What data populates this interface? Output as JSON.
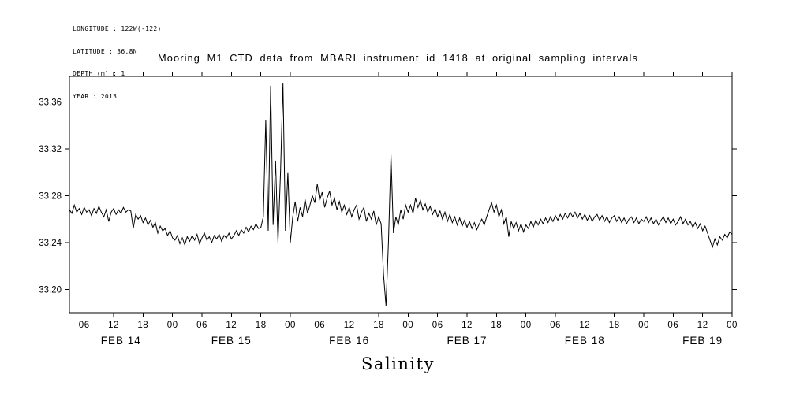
{
  "header_info": {
    "lines": [
      "LONGITUDE : 122W(-122)",
      "LATITUDE : 36.8N",
      "DEPTH (m) : 1",
      "YEAR : 2013"
    ]
  },
  "chart_data": {
    "type": "line",
    "title": "Mooring M1 CTD data from MBARI instrument id 1418 at original sampling intervals",
    "xlabel": "Salinity",
    "ylabel": "",
    "x_unit": "hours since 2013-02-14 00:00",
    "grid": false,
    "legend": "none",
    "line_color": "#000000",
    "background": "#ffffff",
    "xlim": [
      3,
      138
    ],
    "ylim": [
      33.18,
      33.382
    ],
    "y_ticks": [
      33.2,
      33.24,
      33.28,
      33.32,
      33.36
    ],
    "x_ticks": [
      {
        "h": 6,
        "label": "06"
      },
      {
        "h": 12,
        "label": "12"
      },
      {
        "h": 18,
        "label": "18"
      },
      {
        "h": 24,
        "label": "00"
      },
      {
        "h": 30,
        "label": "06"
      },
      {
        "h": 36,
        "label": "12"
      },
      {
        "h": 42,
        "label": "18"
      },
      {
        "h": 48,
        "label": "00"
      },
      {
        "h": 54,
        "label": "06"
      },
      {
        "h": 60,
        "label": "12"
      },
      {
        "h": 66,
        "label": "18"
      },
      {
        "h": 72,
        "label": "00"
      },
      {
        "h": 78,
        "label": "06"
      },
      {
        "h": 84,
        "label": "12"
      },
      {
        "h": 90,
        "label": "18"
      },
      {
        "h": 96,
        "label": "00"
      },
      {
        "h": 102,
        "label": "06"
      },
      {
        "h": 108,
        "label": "12"
      },
      {
        "h": 114,
        "label": "18"
      },
      {
        "h": 120,
        "label": "00"
      },
      {
        "h": 126,
        "label": "06"
      },
      {
        "h": 132,
        "label": "12"
      },
      {
        "h": 138,
        "label": "00"
      }
    ],
    "day_labels": [
      {
        "label": "FEB 14",
        "center_hour": 13.5
      },
      {
        "label": "FEB 15",
        "center_hour": 36
      },
      {
        "label": "FEB 16",
        "center_hour": 60
      },
      {
        "label": "FEB 17",
        "center_hour": 84
      },
      {
        "label": "FEB 18",
        "center_hour": 108
      },
      {
        "label": "FEB 19",
        "center_hour": 132
      }
    ],
    "x_start": 3,
    "x_step": 0.5,
    "values": [
      33.268,
      33.265,
      33.272,
      33.266,
      33.269,
      33.264,
      33.27,
      33.266,
      33.268,
      33.263,
      33.269,
      33.265,
      33.271,
      33.266,
      33.262,
      33.268,
      33.258,
      33.266,
      33.269,
      33.264,
      33.268,
      33.265,
      33.27,
      33.266,
      33.268,
      33.267,
      33.252,
      33.264,
      33.26,
      33.263,
      33.257,
      33.261,
      33.255,
      33.259,
      33.253,
      33.257,
      33.248,
      33.254,
      33.25,
      33.252,
      33.246,
      33.25,
      33.244,
      33.242,
      33.246,
      33.239,
      33.244,
      33.238,
      33.245,
      33.241,
      33.246,
      33.242,
      33.247,
      33.239,
      33.244,
      33.248,
      33.242,
      33.245,
      33.24,
      33.246,
      33.243,
      33.247,
      33.241,
      33.246,
      33.244,
      33.248,
      33.243,
      33.246,
      33.25,
      33.246,
      33.251,
      33.248,
      33.253,
      33.249,
      33.254,
      33.251,
      33.256,
      33.252,
      33.253,
      33.262,
      33.345,
      33.25,
      33.374,
      33.255,
      33.31,
      33.24,
      33.3,
      33.376,
      33.25,
      33.3,
      33.24,
      33.262,
      33.275,
      33.258,
      33.27,
      33.262,
      33.277,
      33.265,
      33.272,
      33.28,
      33.274,
      33.29,
      33.276,
      33.283,
      33.27,
      33.278,
      33.284,
      33.272,
      33.278,
      33.268,
      33.275,
      33.266,
      33.272,
      33.264,
      33.27,
      33.262,
      33.268,
      33.272,
      33.26,
      33.266,
      33.27,
      33.258,
      33.265,
      33.26,
      33.267,
      33.255,
      33.262,
      33.256,
      33.212,
      33.186,
      33.24,
      33.315,
      33.248,
      33.262,
      33.255,
      33.268,
      33.26,
      33.272,
      33.266,
      33.272,
      33.265,
      33.278,
      33.27,
      33.276,
      33.268,
      33.273,
      33.266,
      33.271,
      33.264,
      33.269,
      33.262,
      33.267,
      33.26,
      33.266,
      33.258,
      33.264,
      33.257,
      33.262,
      33.255,
      33.261,
      33.254,
      33.259,
      33.253,
      33.258,
      33.252,
      33.257,
      33.251,
      33.256,
      33.26,
      33.255,
      33.262,
      33.268,
      33.274,
      33.266,
      33.272,
      33.262,
      33.268,
      33.256,
      33.262,
      33.245,
      33.258,
      33.252,
      33.257,
      33.25,
      33.256,
      33.249,
      33.255,
      33.252,
      33.258,
      33.253,
      33.259,
      33.255,
      33.26,
      33.256,
      33.261,
      33.257,
      33.262,
      33.258,
      33.263,
      33.259,
      33.264,
      33.26,
      33.265,
      33.261,
      33.266,
      33.262,
      33.266,
      33.261,
      33.265,
      33.26,
      33.264,
      33.259,
      33.263,
      33.258,
      33.262,
      33.264,
      33.259,
      33.263,
      33.258,
      33.262,
      33.257,
      33.261,
      33.263,
      33.258,
      33.262,
      33.257,
      33.261,
      33.256,
      33.26,
      33.262,
      33.257,
      33.261,
      33.256,
      33.26,
      33.258,
      33.262,
      33.257,
      33.261,
      33.256,
      33.26,
      33.255,
      33.259,
      33.262,
      33.257,
      33.261,
      33.256,
      33.26,
      33.255,
      33.258,
      33.262,
      33.256,
      33.26,
      33.255,
      33.258,
      33.253,
      33.257,
      33.252,
      33.256,
      33.25,
      33.254,
      33.248,
      33.242,
      33.236,
      33.243,
      33.238,
      33.245,
      33.242,
      33.247,
      33.244,
      33.249,
      33.247
    ]
  }
}
